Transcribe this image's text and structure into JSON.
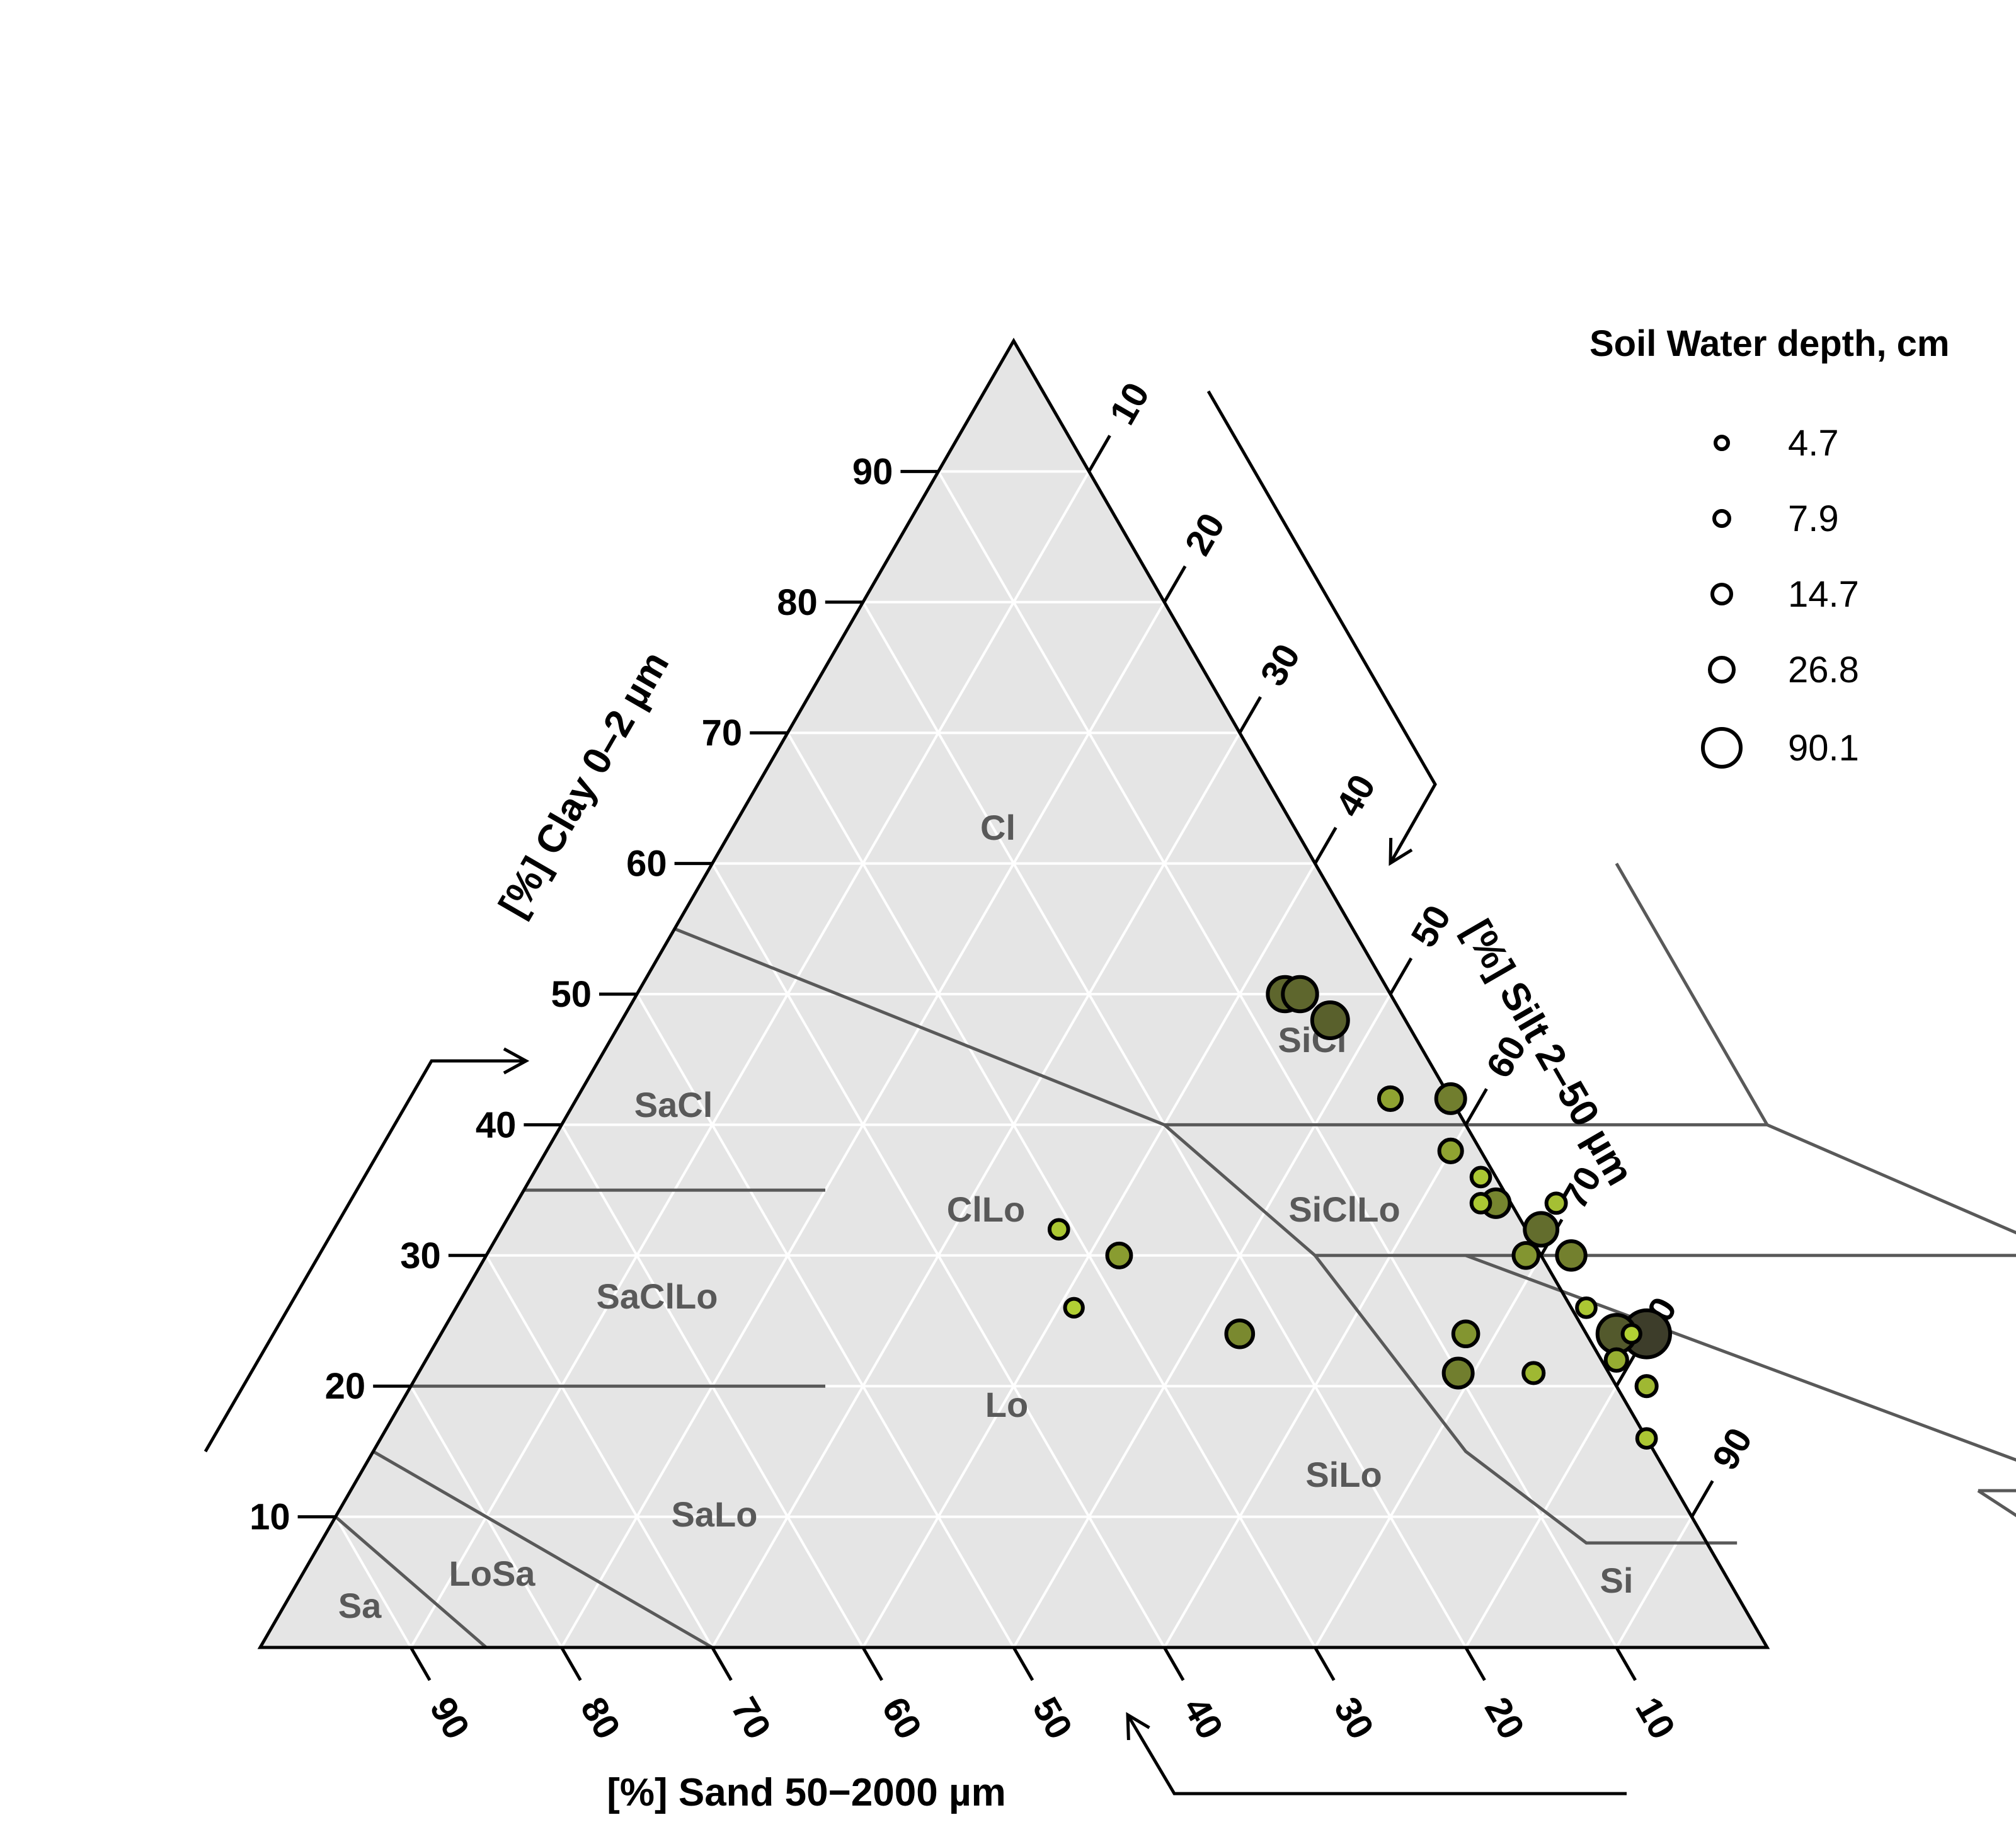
{
  "chart_data": {
    "type": "scatter",
    "subtype": "ternary",
    "axes": {
      "clay": {
        "label": "[%] Clay 0–2 µm",
        "ticks": [
          "90",
          "80",
          "70",
          "60",
          "50",
          "40",
          "30",
          "20",
          "10"
        ]
      },
      "silt": {
        "label": "[%] Silt 2–50 µm",
        "ticks": [
          "10",
          "20",
          "30",
          "40",
          "50",
          "60",
          "70",
          "80",
          "90"
        ]
      },
      "sand": {
        "label": "[%] Sand 50−2000 µm",
        "ticks": [
          "90",
          "80",
          "70",
          "60",
          "50",
          "40",
          "30",
          "20",
          "10"
        ]
      }
    },
    "grid": true,
    "regions": [
      {
        "name": "Cl",
        "label": "Cl"
      },
      {
        "name": "SiCl",
        "label": "SiCl"
      },
      {
        "name": "SaCl",
        "label": "SaCl"
      },
      {
        "name": "ClLo",
        "label": "ClLo"
      },
      {
        "name": "SiClLo",
        "label": "SiClLo"
      },
      {
        "name": "SaClLo",
        "label": "SaClLo"
      },
      {
        "name": "Lo",
        "label": "Lo"
      },
      {
        "name": "SiLo",
        "label": "SiLo"
      },
      {
        "name": "SaLo",
        "label": "SaLo"
      },
      {
        "name": "LoSa",
        "label": "LoSa"
      },
      {
        "name": "Sa",
        "label": "Sa"
      },
      {
        "name": "Si",
        "label": "Si"
      }
    ],
    "points": [
      {
        "clay": 50,
        "sand": 7,
        "depth": 40
      },
      {
        "clay": 50,
        "sand": 6,
        "depth": 40
      },
      {
        "clay": 48,
        "sand": 5,
        "depth": 45
      },
      {
        "clay": 42,
        "sand": 4,
        "depth": 12
      },
      {
        "clay": 42,
        "sand": 0,
        "depth": 25
      },
      {
        "clay": 38,
        "sand": 2,
        "depth": 12
      },
      {
        "clay": 36,
        "sand": 1,
        "depth": 6
      },
      {
        "clay": 34,
        "sand": 2,
        "depth": 6
      },
      {
        "clay": 34,
        "sand": 1,
        "depth": 22
      },
      {
        "clay": 34,
        "sand": -3,
        "depth": 7
      },
      {
        "clay": 32,
        "sand": -1,
        "depth": 35
      },
      {
        "clay": 30,
        "sand": 1,
        "depth": 16
      },
      {
        "clay": 30,
        "sand": -2,
        "depth": 24
      },
      {
        "clay": 32,
        "sand": 31,
        "depth": 6
      },
      {
        "clay": 30,
        "sand": 28,
        "depth": 14
      },
      {
        "clay": 26,
        "sand": 33,
        "depth": 5
      },
      {
        "clay": 24,
        "sand": 23,
        "depth": 20
      },
      {
        "clay": 24,
        "sand": 8,
        "depth": 16
      },
      {
        "clay": 24,
        "sand": -2,
        "depth": 52
      },
      {
        "clay": 24,
        "sand": -4,
        "depth": 90
      },
      {
        "clay": 24,
        "sand": -3,
        "depth": 5
      },
      {
        "clay": 26,
        "sand": -1,
        "depth": 6
      },
      {
        "clay": 22,
        "sand": -1,
        "depth": 10
      },
      {
        "clay": 21,
        "sand": 10,
        "depth": 25
      },
      {
        "clay": 21,
        "sand": 5,
        "depth": 8
      },
      {
        "clay": 20,
        "sand": -2,
        "depth": 8
      },
      {
        "clay": 16,
        "sand": 0,
        "depth": 6
      }
    ],
    "legend": {
      "title": "Soil Water depth, cm",
      "position": "top-right",
      "entries": [
        {
          "label": "4.7",
          "value": 4.7
        },
        {
          "label": "7.9",
          "value": 7.9
        },
        {
          "label": "14.7",
          "value": 14.7
        },
        {
          "label": "26.8",
          "value": 26.8
        },
        {
          "label": "90.1",
          "value": 90.1
        }
      ]
    },
    "colors": {
      "background": "#e5e5e5",
      "grid": "#ffffff",
      "region_boundary": "#595959",
      "region_label": "#595959",
      "point_low": "#b5d334",
      "point_high": "#3d3d2a"
    }
  }
}
